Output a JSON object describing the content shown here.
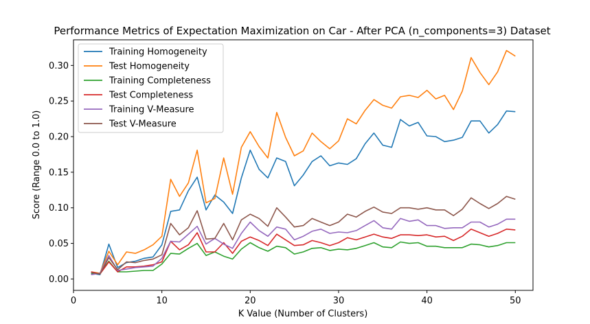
{
  "chart_data": {
    "type": "line",
    "title": "Performance Metrics of Expectation Maximization on Car - After PCA (n_components=3) Dataset",
    "xlabel": "K Value (Number of Clusters)",
    "ylabel": "Score (Range 0.0 to 1.0)",
    "xlim": [
      0,
      52
    ],
    "ylim": [
      -0.016,
      0.336
    ],
    "xticks": [
      0,
      10,
      20,
      30,
      40,
      50
    ],
    "yticks": [
      0.0,
      0.05,
      0.1,
      0.15,
      0.2,
      0.25,
      0.3
    ],
    "ytick_labels": [
      "0.00",
      "0.05",
      "0.10",
      "0.15",
      "0.20",
      "0.25",
      "0.30"
    ],
    "legend_position": "upper-left",
    "grid": false,
    "x": [
      2,
      3,
      4,
      5,
      6,
      7,
      8,
      9,
      10,
      11,
      12,
      13,
      14,
      15,
      16,
      17,
      18,
      19,
      20,
      21,
      22,
      23,
      24,
      25,
      26,
      27,
      28,
      29,
      30,
      31,
      32,
      33,
      34,
      35,
      36,
      37,
      38,
      39,
      40,
      41,
      42,
      43,
      44,
      45,
      46,
      47,
      48,
      49,
      50
    ],
    "series": [
      {
        "name": "Training Homogeneity",
        "color": "#1f77b4",
        "values": [
          0.008,
          0.006,
          0.049,
          0.016,
          0.023,
          0.025,
          0.029,
          0.031,
          0.048,
          0.095,
          0.097,
          0.124,
          0.143,
          0.097,
          0.118,
          0.108,
          0.092,
          0.142,
          0.181,
          0.154,
          0.142,
          0.17,
          0.165,
          0.131,
          0.146,
          0.165,
          0.173,
          0.159,
          0.163,
          0.161,
          0.169,
          0.19,
          0.205,
          0.188,
          0.185,
          0.224,
          0.215,
          0.22,
          0.201,
          0.2,
          0.193,
          0.195,
          0.199,
          0.222,
          0.222,
          0.205,
          0.217,
          0.236,
          0.235
        ]
      },
      {
        "name": "Test Homogeneity",
        "color": "#ff7f0e",
        "values": [
          0.01,
          0.008,
          0.039,
          0.02,
          0.038,
          0.036,
          0.041,
          0.048,
          0.06,
          0.14,
          0.116,
          0.135,
          0.181,
          0.107,
          0.113,
          0.17,
          0.119,
          0.185,
          0.207,
          0.186,
          0.17,
          0.234,
          0.199,
          0.173,
          0.18,
          0.205,
          0.193,
          0.183,
          0.194,
          0.225,
          0.218,
          0.237,
          0.252,
          0.244,
          0.24,
          0.256,
          0.258,
          0.255,
          0.265,
          0.253,
          0.258,
          0.238,
          0.264,
          0.311,
          0.29,
          0.273,
          0.291,
          0.321,
          0.313
        ]
      },
      {
        "name": "Training Completeness",
        "color": "#2ca02c",
        "values": [
          0.007,
          0.008,
          0.025,
          0.01,
          0.01,
          0.011,
          0.012,
          0.012,
          0.021,
          0.036,
          0.035,
          0.043,
          0.05,
          0.033,
          0.038,
          0.032,
          0.028,
          0.042,
          0.051,
          0.044,
          0.039,
          0.046,
          0.044,
          0.035,
          0.038,
          0.043,
          0.044,
          0.04,
          0.042,
          0.041,
          0.043,
          0.047,
          0.051,
          0.045,
          0.044,
          0.052,
          0.05,
          0.051,
          0.046,
          0.046,
          0.044,
          0.044,
          0.044,
          0.049,
          0.048,
          0.045,
          0.047,
          0.051,
          0.051
        ]
      },
      {
        "name": "Test Completeness",
        "color": "#d62728",
        "values": [
          0.01,
          0.007,
          0.024,
          0.01,
          0.017,
          0.017,
          0.018,
          0.02,
          0.024,
          0.053,
          0.041,
          0.048,
          0.065,
          0.038,
          0.038,
          0.051,
          0.036,
          0.053,
          0.059,
          0.054,
          0.047,
          0.063,
          0.055,
          0.047,
          0.048,
          0.054,
          0.051,
          0.047,
          0.051,
          0.058,
          0.055,
          0.059,
          0.063,
          0.059,
          0.057,
          0.062,
          0.062,
          0.061,
          0.062,
          0.059,
          0.06,
          0.054,
          0.06,
          0.07,
          0.065,
          0.06,
          0.064,
          0.07,
          0.069
        ]
      },
      {
        "name": "Training V-Measure",
        "color": "#9467bd",
        "values": [
          0.006,
          0.008,
          0.033,
          0.012,
          0.014,
          0.016,
          0.017,
          0.018,
          0.029,
          0.053,
          0.052,
          0.063,
          0.074,
          0.049,
          0.057,
          0.049,
          0.043,
          0.064,
          0.08,
          0.068,
          0.06,
          0.073,
          0.07,
          0.055,
          0.06,
          0.067,
          0.07,
          0.064,
          0.066,
          0.065,
          0.068,
          0.075,
          0.082,
          0.072,
          0.07,
          0.085,
          0.081,
          0.083,
          0.075,
          0.075,
          0.071,
          0.072,
          0.072,
          0.08,
          0.08,
          0.073,
          0.077,
          0.084,
          0.084
        ]
      },
      {
        "name": "Test V-Measure",
        "color": "#8c564b",
        "values": [
          0.009,
          0.007,
          0.03,
          0.013,
          0.024,
          0.023,
          0.026,
          0.028,
          0.034,
          0.078,
          0.062,
          0.072,
          0.096,
          0.056,
          0.057,
          0.078,
          0.055,
          0.083,
          0.091,
          0.085,
          0.074,
          0.1,
          0.087,
          0.073,
          0.075,
          0.085,
          0.08,
          0.075,
          0.08,
          0.091,
          0.087,
          0.095,
          0.101,
          0.094,
          0.092,
          0.1,
          0.1,
          0.098,
          0.1,
          0.097,
          0.097,
          0.089,
          0.098,
          0.114,
          0.106,
          0.099,
          0.106,
          0.116,
          0.112
        ]
      }
    ]
  }
}
